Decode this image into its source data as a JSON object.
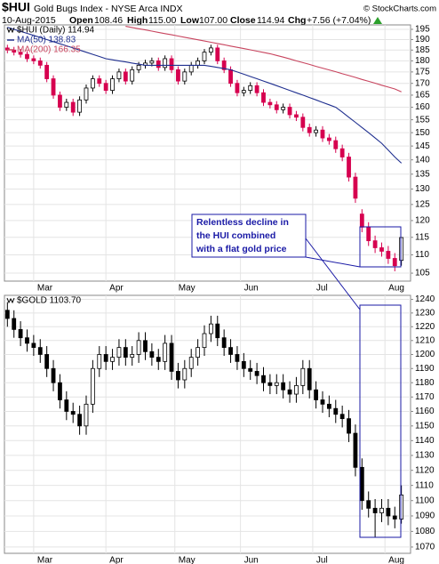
{
  "header": {
    "symbol": "$HUI",
    "name": "Gold Bugs Index - NYSE Arca INDX",
    "copyright": "© StockCharts.com",
    "date": "10-Aug-2015",
    "stats": [
      {
        "label": "Open",
        "value": "108.46"
      },
      {
        "label": "High",
        "value": "115.00"
      },
      {
        "label": "Low",
        "value": "107.00"
      },
      {
        "label": "Close",
        "value": "114.94"
      },
      {
        "label": "Chg",
        "value": "+7.56 (+7.04%)"
      }
    ]
  },
  "chart_data": [
    {
      "type": "candlestick",
      "legend": "$HUI (Daily) 114.94",
      "log_scale": true,
      "grid": true,
      "up_color": "#000000",
      "down_color": "#d6004f",
      "ylim": [
        102.9,
        197.2
      ],
      "yticks": [
        105,
        110,
        115,
        120,
        125,
        130,
        135,
        140,
        145,
        150,
        155,
        160,
        165,
        170,
        175,
        180,
        185,
        190,
        195
      ],
      "xlim": [
        -0.45,
        61.4
      ],
      "xticks": [
        {
          "value": 4,
          "label": "Mar"
        },
        {
          "value": 15,
          "label": "Apr"
        },
        {
          "value": 25.5,
          "label": "May"
        },
        {
          "value": 35.5,
          "label": "Jun"
        },
        {
          "value": 46.5,
          "label": "Jul"
        },
        {
          "value": 57.5,
          "label": "Aug"
        }
      ],
      "annotation": [
        "Relentless decline in",
        "the HUI combined",
        "with a flat gold price"
      ],
      "ohlc": [
        [
          186,
          187.5,
          183.5,
          185
        ],
        [
          185,
          186.5,
          182.5,
          184
        ],
        [
          184,
          185.5,
          181.5,
          183
        ],
        [
          183,
          184.5,
          179.5,
          181
        ],
        [
          181,
          182.5,
          178.5,
          180
        ],
        [
          180,
          181.5,
          176.5,
          178
        ],
        [
          178,
          179.5,
          170.5,
          172
        ],
        [
          172,
          173.5,
          163.5,
          165
        ],
        [
          165,
          166.5,
          158.5,
          160
        ],
        [
          160,
          163.5,
          158.5,
          162
        ],
        [
          162,
          163.5,
          156.5,
          158
        ],
        [
          158,
          164.5,
          156.5,
          163
        ],
        [
          163,
          169.5,
          161.5,
          168
        ],
        [
          168,
          173.5,
          166.5,
          172
        ],
        [
          172,
          173.5,
          168.5,
          170
        ],
        [
          170,
          171.5,
          165.5,
          167
        ],
        [
          167,
          173.5,
          165.5,
          172
        ],
        [
          172,
          176.5,
          170.5,
          175
        ],
        [
          175,
          176.5,
          169.5,
          171
        ],
        [
          171,
          177.5,
          169.5,
          176
        ],
        [
          176,
          179.5,
          174.5,
          178
        ],
        [
          178,
          180.5,
          176.5,
          179
        ],
        [
          179,
          181.5,
          177.5,
          180
        ],
        [
          180,
          181.5,
          175.5,
          177
        ],
        [
          177,
          182.5,
          175.5,
          181
        ],
        [
          181,
          182.5,
          174.5,
          176
        ],
        [
          176,
          177.5,
          169.5,
          171
        ],
        [
          171,
          176.5,
          169.5,
          175
        ],
        [
          175,
          179.5,
          173.5,
          178
        ],
        [
          178,
          181.5,
          176.5,
          180
        ],
        [
          180,
          185.5,
          178.5,
          184
        ],
        [
          184,
          187.5,
          182.5,
          186
        ],
        [
          186,
          187.5,
          178.5,
          180
        ],
        [
          180,
          181.5,
          174.5,
          176
        ],
        [
          176,
          177.5,
          168.5,
          170
        ],
        [
          170,
          171.5,
          164.5,
          166
        ],
        [
          166,
          168.5,
          164.5,
          167
        ],
        [
          167,
          170.5,
          165.5,
          169
        ],
        [
          169,
          170.5,
          164.5,
          166
        ],
        [
          166,
          167.5,
          160.5,
          162
        ],
        [
          162,
          163.5,
          159.5,
          161
        ],
        [
          161,
          162.5,
          157.5,
          159
        ],
        [
          159,
          161.5,
          157.5,
          160
        ],
        [
          160,
          161.5,
          155.5,
          157
        ],
        [
          157,
          158.5,
          154.5,
          156
        ],
        [
          156,
          157.5,
          150.5,
          152
        ],
        [
          152,
          153.5,
          148.5,
          150
        ],
        [
          150,
          152.5,
          148.5,
          151
        ],
        [
          151,
          152.5,
          146.5,
          148
        ],
        [
          148,
          149.5,
          145.5,
          147
        ],
        [
          147,
          148.5,
          142.5,
          144
        ],
        [
          144,
          145.5,
          139.5,
          141
        ],
        [
          141,
          142.5,
          132.5,
          134
        ],
        [
          134,
          135.5,
          125.5,
          127
        ],
        [
          122,
          123.5,
          116.5,
          118
        ],
        [
          118,
          119.5,
          112.5,
          114
        ],
        [
          114,
          115.5,
          110.5,
          112
        ],
        [
          112,
          113.5,
          109.5,
          111
        ],
        [
          111,
          112.5,
          107.5,
          109
        ],
        [
          109,
          110.5,
          105.5,
          107
        ],
        [
          108.46,
          115,
          107,
          114.94
        ]
      ],
      "series": [
        {
          "name": "MA(50) 138.83",
          "color": "#1f2f8f",
          "values": [
            196,
            195,
            194,
            193,
            192,
            191,
            190,
            189,
            188,
            187,
            186,
            185,
            184,
            183,
            182,
            181,
            180.5,
            180,
            179.5,
            179,
            178.5,
            178,
            178,
            178,
            178,
            178,
            178,
            178,
            178,
            178,
            178,
            177.5,
            177,
            176.5,
            176,
            175,
            174,
            173,
            172,
            171,
            170,
            169,
            168,
            167,
            166,
            165,
            164,
            163,
            162,
            161,
            160,
            158,
            156,
            154,
            152,
            150,
            148,
            146,
            143.5,
            141,
            138.83
          ]
        },
        {
          "name": "MA(200) 166.35",
          "color": "#c8445e",
          "values": [
            null,
            null,
            null,
            null,
            null,
            null,
            null,
            null,
            null,
            null,
            null,
            null,
            null,
            null,
            null,
            null,
            null,
            null,
            196.5,
            195.9,
            195.3,
            194.7,
            194.1,
            193.5,
            192.9,
            192.3,
            191.7,
            191.1,
            190.5,
            189.9,
            189.3,
            188.7,
            188.1,
            187.5,
            186.9,
            186.3,
            185.7,
            185.1,
            184.5,
            183.9,
            183.3,
            182.5,
            181.7,
            180.9,
            180.0,
            179.2,
            178.4,
            177.5,
            176.7,
            175.9,
            175.1,
            174.2,
            173.4,
            172.6,
            171.7,
            170.9,
            170.1,
            169.2,
            168.4,
            167.6,
            166.35
          ]
        }
      ]
    },
    {
      "type": "candlestick",
      "legend": "$GOLD 1103.70",
      "log_scale": true,
      "grid": true,
      "up_color": "#000000",
      "down_color": "#000000",
      "ylim": [
        1066,
        1243
      ],
      "yticks": [
        1070,
        1080,
        1090,
        1100,
        1110,
        1120,
        1130,
        1140,
        1150,
        1160,
        1170,
        1180,
        1190,
        1200,
        1210,
        1220,
        1230,
        1240
      ],
      "xlim": [
        -0.45,
        61.4
      ],
      "xticks": [
        {
          "value": 4,
          "label": "Mar"
        },
        {
          "value": 15,
          "label": "Apr"
        },
        {
          "value": 25.5,
          "label": "May"
        },
        {
          "value": 35.5,
          "label": "Jun"
        },
        {
          "value": 46.5,
          "label": "Jul"
        },
        {
          "value": 57.5,
          "label": "Aug"
        }
      ],
      "ohlc": [
        [
          1232,
          1238,
          1220,
          1226
        ],
        [
          1226,
          1232,
          1212,
          1218
        ],
        [
          1218,
          1224,
          1206,
          1212
        ],
        [
          1212,
          1218,
          1202,
          1208
        ],
        [
          1208,
          1214,
          1199,
          1205
        ],
        [
          1205,
          1211,
          1194,
          1200
        ],
        [
          1200,
          1206,
          1184,
          1190
        ],
        [
          1190,
          1196,
          1174,
          1180
        ],
        [
          1180,
          1186,
          1162,
          1168
        ],
        [
          1168,
          1174,
          1154,
          1160
        ],
        [
          1160,
          1166,
          1152,
          1158
        ],
        [
          1158,
          1164,
          1144,
          1150
        ],
        [
          1150,
          1171,
          1144,
          1165
        ],
        [
          1165,
          1196,
          1159,
          1190
        ],
        [
          1190,
          1206,
          1184,
          1200
        ],
        [
          1200,
          1206,
          1189,
          1195
        ],
        [
          1195,
          1204,
          1189,
          1198
        ],
        [
          1198,
          1211,
          1192,
          1205
        ],
        [
          1205,
          1211,
          1192,
          1198
        ],
        [
          1198,
          1206,
          1192,
          1200
        ],
        [
          1200,
          1216,
          1194,
          1210
        ],
        [
          1210,
          1216,
          1196,
          1202
        ],
        [
          1202,
          1208,
          1192,
          1198
        ],
        [
          1198,
          1204,
          1189,
          1195
        ],
        [
          1195,
          1214,
          1189,
          1208
        ],
        [
          1208,
          1214,
          1182,
          1188
        ],
        [
          1188,
          1194,
          1176,
          1182
        ],
        [
          1182,
          1196,
          1176,
          1190
        ],
        [
          1190,
          1204,
          1184,
          1198
        ],
        [
          1198,
          1211,
          1192,
          1205
        ],
        [
          1205,
          1221,
          1199,
          1215
        ],
        [
          1215,
          1228,
          1209,
          1222
        ],
        [
          1222,
          1228,
          1206,
          1212
        ],
        [
          1212,
          1218,
          1199,
          1205
        ],
        [
          1205,
          1211,
          1194,
          1200
        ],
        [
          1200,
          1206,
          1189,
          1195
        ],
        [
          1195,
          1201,
          1184,
          1190
        ],
        [
          1190,
          1196,
          1182,
          1188
        ],
        [
          1188,
          1194,
          1179,
          1185
        ],
        [
          1185,
          1191,
          1174,
          1180
        ],
        [
          1180,
          1186,
          1172,
          1178
        ],
        [
          1178,
          1186,
          1172,
          1180
        ],
        [
          1180,
          1186,
          1169,
          1175
        ],
        [
          1175,
          1181,
          1166,
          1172
        ],
        [
          1172,
          1184,
          1166,
          1178
        ],
        [
          1178,
          1196,
          1172,
          1190
        ],
        [
          1190,
          1196,
          1169,
          1175
        ],
        [
          1175,
          1181,
          1162,
          1168
        ],
        [
          1168,
          1174,
          1159,
          1165
        ],
        [
          1165,
          1171,
          1156,
          1162
        ],
        [
          1162,
          1168,
          1152,
          1158
        ],
        [
          1158,
          1164,
          1149,
          1155
        ],
        [
          1155,
          1161,
          1139,
          1145
        ],
        [
          1145,
          1151,
          1116,
          1122
        ],
        [
          1122,
          1128,
          1094,
          1100
        ],
        [
          1100,
          1106,
          1089,
          1095
        ],
        [
          1095,
          1101,
          1076,
          1092
        ],
        [
          1092,
          1101,
          1086,
          1095
        ],
        [
          1095,
          1101,
          1084,
          1090
        ],
        [
          1090,
          1096,
          1082,
          1088
        ],
        [
          1088,
          1110,
          1085,
          1103.7
        ]
      ],
      "series": []
    }
  ]
}
